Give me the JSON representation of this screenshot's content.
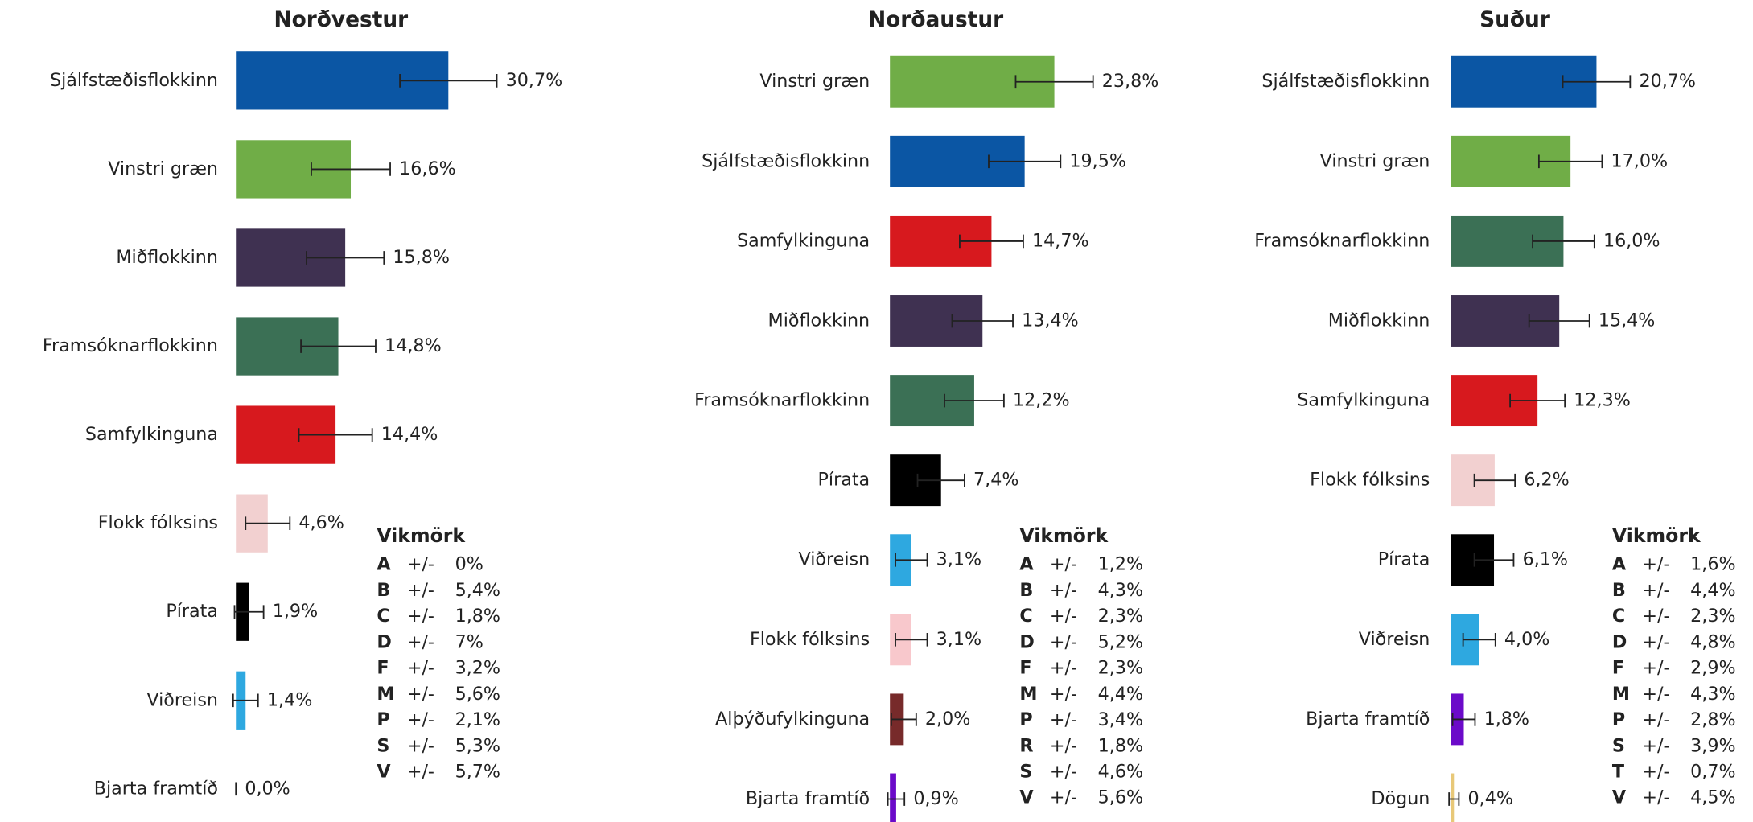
{
  "chart_data": [
    {
      "type": "bar",
      "title": "Norðvestur",
      "categories": [
        "Sjálfstæðisflokkinn",
        "Vinstri græn",
        "Miðflokkinn",
        "Framsóknarflokkinn",
        "Samfylkinguna",
        "Flokk fólksins",
        "Pírata",
        "Viðreisn",
        "Bjarta framtíð"
      ],
      "values": [
        30.7,
        16.6,
        15.8,
        14.8,
        14.4,
        4.6,
        1.9,
        1.4,
        0.0
      ],
      "value_labels": [
        "30,7%",
        "16,6%",
        "15,8%",
        "14,8%",
        "14,4%",
        "4,6%",
        "1,9%",
        "1,4%",
        "0,0%"
      ],
      "errors": [
        7,
        5.7,
        5.6,
        5.4,
        5.3,
        3.2,
        2.1,
        1.8,
        0
      ],
      "colors": [
        "#0b56a4",
        "#70ad47",
        "#3f3151",
        "#3b7055",
        "#d7191e",
        "#f2d0d0",
        "#000000",
        "#2ea8e0",
        "#6b0ac9"
      ],
      "margins": {
        "title": "Vikmörk",
        "rows": [
          {
            "letter": "A",
            "sign": "+/-",
            "value": "0%"
          },
          {
            "letter": "B",
            "sign": "+/-",
            "value": "5,4%"
          },
          {
            "letter": "C",
            "sign": "+/-",
            "value": "1,8%"
          },
          {
            "letter": "D",
            "sign": "+/-",
            "value": "7%"
          },
          {
            "letter": "F",
            "sign": "+/-",
            "value": "3,2%"
          },
          {
            "letter": "M",
            "sign": "+/-",
            "value": "5,6%"
          },
          {
            "letter": "P",
            "sign": "+/-",
            "value": "2,1%"
          },
          {
            "letter": "S",
            "sign": "+/-",
            "value": "5,3%"
          },
          {
            "letter": "V",
            "sign": "+/-",
            "value": "5,7%"
          }
        ]
      }
    },
    {
      "type": "bar",
      "title": "Norðaustur",
      "categories": [
        "Vinstri græn",
        "Sjálfstæðisflokkinn",
        "Samfylkinguna",
        "Miðflokkinn",
        "Framsóknarflokkinn",
        "Pírata",
        "Viðreisn",
        "Flokk fólksins",
        "Alþýðufylkinguna",
        "Bjarta framtíð"
      ],
      "values": [
        23.8,
        19.5,
        14.7,
        13.4,
        12.2,
        7.4,
        3.1,
        3.1,
        2.0,
        0.9
      ],
      "value_labels": [
        "23,8%",
        "19,5%",
        "14,7%",
        "13,4%",
        "12,2%",
        "7,4%",
        "3,1%",
        "3,1%",
        "2,0%",
        "0,9%"
      ],
      "errors": [
        5.6,
        5.2,
        4.6,
        4.4,
        4.3,
        3.4,
        2.3,
        2.3,
        1.8,
        1.2
      ],
      "colors": [
        "#70ad47",
        "#0b56a4",
        "#d7191e",
        "#3f3151",
        "#3b7055",
        "#000000",
        "#2ea8e0",
        "#f8c8cc",
        "#772a2a",
        "#6b0ac9"
      ],
      "margins": {
        "title": "Vikmörk",
        "rows": [
          {
            "letter": "A",
            "sign": "+/-",
            "value": "1,2%"
          },
          {
            "letter": "B",
            "sign": "+/-",
            "value": "4,3%"
          },
          {
            "letter": "C",
            "sign": "+/-",
            "value": "2,3%"
          },
          {
            "letter": "D",
            "sign": "+/-",
            "value": "5,2%"
          },
          {
            "letter": "F",
            "sign": "+/-",
            "value": "2,3%"
          },
          {
            "letter": "M",
            "sign": "+/-",
            "value": "4,4%"
          },
          {
            "letter": "P",
            "sign": "+/-",
            "value": "3,4%"
          },
          {
            "letter": "R",
            "sign": "+/-",
            "value": "1,8%"
          },
          {
            "letter": "S",
            "sign": "+/-",
            "value": "4,6%"
          },
          {
            "letter": "V",
            "sign": "+/-",
            "value": "5,6%"
          }
        ]
      }
    },
    {
      "type": "bar",
      "title": "Suður",
      "categories": [
        "Sjálfstæðisflokkinn",
        "Vinstri græn",
        "Framsóknarflokkinn",
        "Miðflokkinn",
        "Samfylkinguna",
        "Flokk fólksins",
        "Pírata",
        "Viðreisn",
        "Bjarta framtíð",
        "Dögun"
      ],
      "values": [
        20.7,
        17.0,
        16.0,
        15.4,
        12.3,
        6.2,
        6.1,
        4.0,
        1.8,
        0.4
      ],
      "value_labels": [
        "20,7%",
        "17,0%",
        "16,0%",
        "15,4%",
        "12,3%",
        "6,2%",
        "6,1%",
        "4,0%",
        "1,8%",
        "0,4%"
      ],
      "errors": [
        4.8,
        4.5,
        4.4,
        4.3,
        3.9,
        2.9,
        2.8,
        2.3,
        1.6,
        0.7
      ],
      "colors": [
        "#0b56a4",
        "#70ad47",
        "#3b7055",
        "#3f3151",
        "#d7191e",
        "#f2d0d0",
        "#000000",
        "#2ea8e0",
        "#6b0ac9",
        "#e8c878"
      ],
      "margins": {
        "title": "Vikmörk",
        "rows": [
          {
            "letter": "A",
            "sign": "+/-",
            "value": "1,6%"
          },
          {
            "letter": "B",
            "sign": "+/-",
            "value": "4,4%"
          },
          {
            "letter": "C",
            "sign": "+/-",
            "value": "2,3%"
          },
          {
            "letter": "D",
            "sign": "+/-",
            "value": "4,8%"
          },
          {
            "letter": "F",
            "sign": "+/-",
            "value": "2,9%"
          },
          {
            "letter": "M",
            "sign": "+/-",
            "value": "4,3%"
          },
          {
            "letter": "P",
            "sign": "+/-",
            "value": "2,8%"
          },
          {
            "letter": "S",
            "sign": "+/-",
            "value": "3,9%"
          },
          {
            "letter": "T",
            "sign": "+/-",
            "value": "0,7%"
          },
          {
            "letter": "V",
            "sign": "+/-",
            "value": "4,5%"
          }
        ]
      }
    }
  ]
}
